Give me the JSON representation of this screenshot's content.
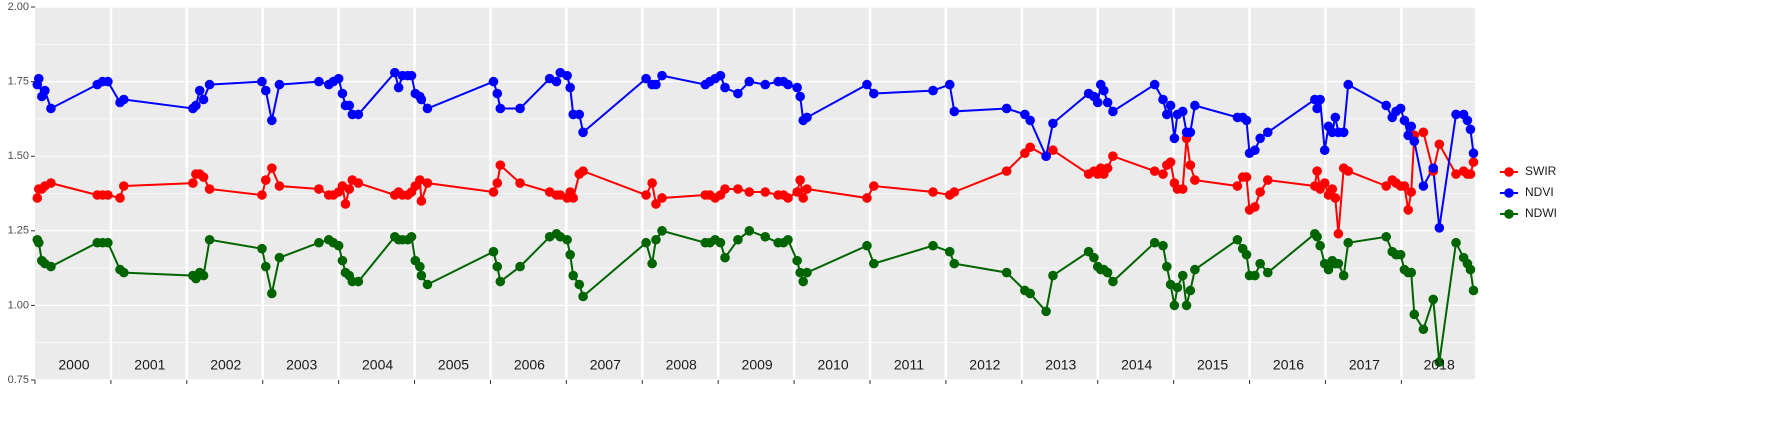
{
  "chart_data": {
    "type": "line",
    "xlim": [
      2000,
      2018.97
    ],
    "ylim": [
      0.75,
      2.0
    ],
    "xticks": [
      {
        "value": 2000,
        "label": "2000"
      },
      {
        "value": 2001,
        "label": "2001"
      },
      {
        "value": 2002,
        "label": "2002"
      },
      {
        "value": 2003,
        "label": "2003"
      },
      {
        "value": 2004,
        "label": "2004"
      },
      {
        "value": 2005,
        "label": "2005"
      },
      {
        "value": 2006,
        "label": "2006"
      },
      {
        "value": 2007,
        "label": "2007"
      },
      {
        "value": 2008,
        "label": "2008"
      },
      {
        "value": 2009,
        "label": "2009"
      },
      {
        "value": 2010,
        "label": "2010"
      },
      {
        "value": 2011,
        "label": "2011"
      },
      {
        "value": 2012,
        "label": "2012"
      },
      {
        "value": 2013,
        "label": "2013"
      },
      {
        "value": 2014,
        "label": "2014"
      },
      {
        "value": 2015,
        "label": "2015"
      },
      {
        "value": 2016,
        "label": "2016"
      },
      {
        "value": 2017,
        "label": "2017"
      },
      {
        "value": 2018,
        "label": "2018"
      }
    ],
    "yticks": [
      {
        "value": 0.75,
        "label": "0.75"
      },
      {
        "value": 1.0,
        "label": "1.00"
      },
      {
        "value": 1.25,
        "label": "1.25"
      },
      {
        "value": 1.5,
        "label": "1.50"
      },
      {
        "value": 1.75,
        "label": "1.75"
      },
      {
        "value": 2.0,
        "label": "2.00"
      }
    ],
    "grid": true,
    "legend": "right",
    "x": [
      2000.03,
      2000.05,
      2000.09,
      2000.13,
      2000.21,
      2000.82,
      2000.89,
      2000.96,
      2001.12,
      2001.17,
      2002.08,
      2002.12,
      2002.17,
      2002.22,
      2002.3,
      2002.99,
      2003.04,
      2003.12,
      2003.22,
      2003.74,
      2003.87,
      2003.93,
      2004.0,
      2004.05,
      2004.09,
      2004.14,
      2004.18,
      2004.26,
      2004.74,
      2004.79,
      2004.84,
      2004.91,
      2004.96,
      2005.01,
      2005.07,
      2005.09,
      2005.17,
      2006.04,
      2006.09,
      2006.13,
      2006.39,
      2006.78,
      2006.87,
      2006.92,
      2007.01,
      2007.05,
      2007.09,
      2007.17,
      2007.22,
      2008.05,
      2008.13,
      2008.18,
      2008.26,
      2008.83,
      2008.89,
      2008.96,
      2009.03,
      2009.09,
      2009.26,
      2009.41,
      2009.62,
      2009.79,
      2009.86,
      2009.92,
      2010.04,
      2010.08,
      2010.12,
      2010.17,
      2010.96,
      2011.05,
      2011.83,
      2012.05,
      2012.11,
      2012.8,
      2013.04,
      2013.11,
      2013.32,
      2013.41,
      2013.88,
      2013.95,
      2014.0,
      2014.04,
      2014.08,
      2014.13,
      2014.2,
      2014.75,
      2014.86,
      2014.91,
      2014.96,
      2015.01,
      2015.05,
      2015.12,
      2015.17,
      2015.22,
      2015.28,
      2015.84,
      2015.91,
      2015.96,
      2016.0,
      2016.07,
      2016.14,
      2016.24,
      2016.86,
      2016.89,
      2016.93,
      2016.99,
      2017.04,
      2017.09,
      2017.13,
      2017.17,
      2017.24,
      2017.3,
      2017.8,
      2017.88,
      2017.93,
      2017.99,
      2018.04,
      2018.09,
      2018.13,
      2018.17,
      2018.29,
      2018.42,
      2018.5,
      2018.72,
      2018.82,
      2018.87,
      2018.91,
      2018.95
    ],
    "series": [
      {
        "name": "SWIR",
        "color": "#ff0000",
        "values": [
          1.36,
          1.39,
          1.39,
          1.4,
          1.41,
          1.37,
          1.37,
          1.37,
          1.36,
          1.4,
          1.41,
          1.44,
          1.44,
          1.43,
          1.39,
          1.37,
          1.42,
          1.46,
          1.4,
          1.39,
          1.37,
          1.37,
          1.38,
          1.4,
          1.34,
          1.39,
          1.42,
          1.41,
          1.37,
          1.38,
          1.37,
          1.37,
          1.38,
          1.4,
          1.42,
          1.35,
          1.41,
          1.38,
          1.41,
          1.47,
          1.41,
          1.38,
          1.37,
          1.37,
          1.36,
          1.38,
          1.36,
          1.44,
          1.45,
          1.37,
          1.41,
          1.34,
          1.36,
          1.37,
          1.37,
          1.36,
          1.37,
          1.39,
          1.39,
          1.38,
          1.38,
          1.37,
          1.37,
          1.36,
          1.38,
          1.42,
          1.36,
          1.39,
          1.36,
          1.4,
          1.38,
          1.37,
          1.38,
          1.45,
          1.51,
          1.53,
          1.5,
          1.52,
          1.44,
          1.45,
          1.44,
          1.46,
          1.44,
          1.46,
          1.5,
          1.45,
          1.44,
          1.47,
          1.48,
          1.41,
          1.39,
          1.39,
          1.56,
          1.47,
          1.42,
          1.4,
          1.43,
          1.43,
          1.32,
          1.33,
          1.38,
          1.42,
          1.4,
          1.45,
          1.39,
          1.41,
          1.37,
          1.39,
          1.36,
          1.24,
          1.46,
          1.45,
          1.4,
          1.42,
          1.41,
          1.4,
          1.4,
          1.32,
          1.38,
          1.57,
          1.58,
          1.45,
          1.54,
          1.44,
          1.45,
          1.44,
          1.44,
          1.48
        ]
      },
      {
        "name": "NDVI",
        "color": "#0000ff",
        "values": [
          1.74,
          1.76,
          1.7,
          1.72,
          1.66,
          1.74,
          1.75,
          1.75,
          1.68,
          1.69,
          1.66,
          1.67,
          1.72,
          1.69,
          1.74,
          1.75,
          1.72,
          1.62,
          1.74,
          1.75,
          1.74,
          1.75,
          1.76,
          1.71,
          1.67,
          1.67,
          1.64,
          1.64,
          1.78,
          1.73,
          1.77,
          1.77,
          1.77,
          1.71,
          1.7,
          1.69,
          1.66,
          1.75,
          1.71,
          1.66,
          1.66,
          1.76,
          1.75,
          1.78,
          1.77,
          1.73,
          1.64,
          1.64,
          1.58,
          1.76,
          1.74,
          1.74,
          1.77,
          1.74,
          1.75,
          1.76,
          1.77,
          1.73,
          1.71,
          1.75,
          1.74,
          1.75,
          1.75,
          1.74,
          1.73,
          1.7,
          1.62,
          1.63,
          1.74,
          1.71,
          1.72,
          1.74,
          1.65,
          1.66,
          1.64,
          1.62,
          1.5,
          1.61,
          1.71,
          1.7,
          1.68,
          1.74,
          1.72,
          1.68,
          1.65,
          1.74,
          1.69,
          1.64,
          1.67,
          1.56,
          1.64,
          1.65,
          1.58,
          1.58,
          1.67,
          1.63,
          1.63,
          1.62,
          1.51,
          1.52,
          1.56,
          1.58,
          1.69,
          1.66,
          1.69,
          1.52,
          1.6,
          1.58,
          1.63,
          1.58,
          1.58,
          1.74,
          1.67,
          1.63,
          1.65,
          1.66,
          1.62,
          1.57,
          1.6,
          1.55,
          1.4,
          1.46,
          1.26,
          1.64,
          1.64,
          1.62,
          1.59,
          1.51
        ]
      },
      {
        "name": "NDWI",
        "color": "#006400",
        "values": [
          1.22,
          1.21,
          1.15,
          1.14,
          1.13,
          1.21,
          1.21,
          1.21,
          1.12,
          1.11,
          1.1,
          1.09,
          1.11,
          1.1,
          1.22,
          1.19,
          1.13,
          1.04,
          1.16,
          1.21,
          1.22,
          1.21,
          1.2,
          1.15,
          1.11,
          1.1,
          1.08,
          1.08,
          1.23,
          1.22,
          1.22,
          1.22,
          1.23,
          1.15,
          1.13,
          1.1,
          1.07,
          1.18,
          1.13,
          1.08,
          1.13,
          1.23,
          1.24,
          1.23,
          1.22,
          1.17,
          1.1,
          1.07,
          1.03,
          1.21,
          1.14,
          1.22,
          1.25,
          1.21,
          1.21,
          1.22,
          1.21,
          1.16,
          1.22,
          1.25,
          1.23,
          1.21,
          1.21,
          1.22,
          1.15,
          1.11,
          1.08,
          1.11,
          1.2,
          1.14,
          1.2,
          1.18,
          1.14,
          1.11,
          1.05,
          1.04,
          0.98,
          1.1,
          1.18,
          1.16,
          1.13,
          1.12,
          1.12,
          1.11,
          1.08,
          1.21,
          1.2,
          1.13,
          1.07,
          1.0,
          1.06,
          1.1,
          1.0,
          1.05,
          1.12,
          1.22,
          1.19,
          1.17,
          1.1,
          1.1,
          1.14,
          1.11,
          1.24,
          1.23,
          1.2,
          1.14,
          1.12,
          1.15,
          1.14,
          1.14,
          1.1,
          1.21,
          1.23,
          1.18,
          1.17,
          1.17,
          1.12,
          1.11,
          1.11,
          0.97,
          0.92,
          1.02,
          0.81,
          1.21,
          1.16,
          1.14,
          1.12,
          1.05
        ]
      }
    ]
  }
}
